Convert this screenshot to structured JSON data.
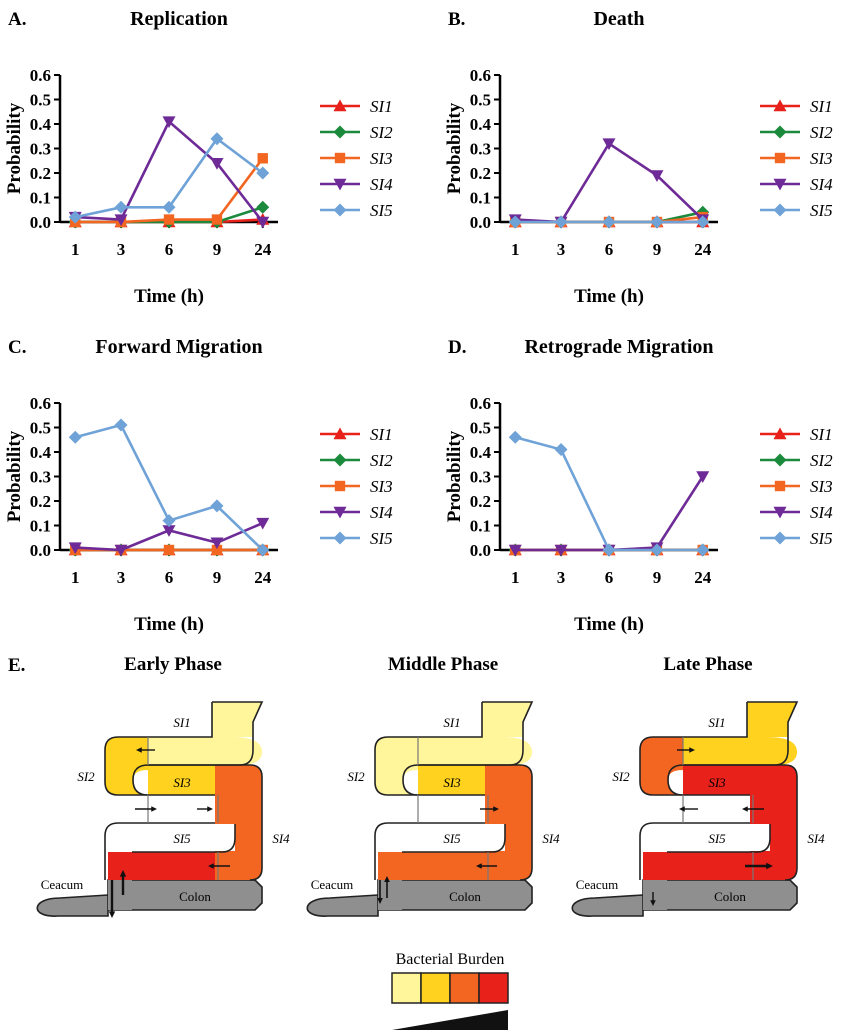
{
  "chart_data": [
    {
      "type": "line",
      "letter": "A.",
      "title": "Replication",
      "xlabel": "Time (h)",
      "ylabel": "Probability",
      "categories": [
        "1",
        "3",
        "6",
        "9",
        "24"
      ],
      "yticks": [
        "0.0",
        "0.1",
        "0.2",
        "0.3",
        "0.4",
        "0.5",
        "0.6"
      ],
      "ylim": [
        0,
        0.6
      ],
      "series": [
        {
          "name": "SI1",
          "values": [
            0.0,
            0.0,
            0.0,
            0.0,
            0.01
          ]
        },
        {
          "name": "SI2",
          "values": [
            0.0,
            0.0,
            0.0,
            0.0,
            0.06
          ]
        },
        {
          "name": "SI3",
          "values": [
            0.0,
            0.0,
            0.01,
            0.01,
            0.26
          ]
        },
        {
          "name": "SI4",
          "values": [
            0.02,
            0.01,
            0.41,
            0.24,
            0.0
          ]
        },
        {
          "name": "SI5",
          "values": [
            0.02,
            0.06,
            0.06,
            0.34,
            0.2
          ]
        }
      ]
    },
    {
      "type": "line",
      "letter": "B.",
      "title": "Death",
      "xlabel": "Time (h)",
      "ylabel": "Probability",
      "categories": [
        "1",
        "3",
        "6",
        "9",
        "24"
      ],
      "yticks": [
        "0.0",
        "0.1",
        "0.2",
        "0.3",
        "0.4",
        "0.5",
        "0.6"
      ],
      "ylim": [
        0,
        0.6
      ],
      "series": [
        {
          "name": "SI1",
          "values": [
            0.0,
            0.0,
            0.0,
            0.0,
            0.0
          ]
        },
        {
          "name": "SI2",
          "values": [
            0.0,
            0.0,
            0.0,
            0.0,
            0.04
          ]
        },
        {
          "name": "SI3",
          "values": [
            0.0,
            0.0,
            0.0,
            0.0,
            0.02
          ]
        },
        {
          "name": "SI4",
          "values": [
            0.01,
            0.0,
            0.32,
            0.19,
            0.01
          ]
        },
        {
          "name": "SI5",
          "values": [
            0.0,
            0.0,
            0.0,
            0.0,
            0.0
          ]
        }
      ]
    },
    {
      "type": "line",
      "letter": "C.",
      "title": "Forward Migration",
      "xlabel": "Time (h)",
      "ylabel": "Probability",
      "categories": [
        "1",
        "3",
        "6",
        "9",
        "24"
      ],
      "yticks": [
        "0.0",
        "0.1",
        "0.2",
        "0.3",
        "0.4",
        "0.5",
        "0.6"
      ],
      "ylim": [
        0,
        0.6
      ],
      "series": [
        {
          "name": "SI1",
          "values": [
            0.0,
            0.0,
            0.0,
            0.0,
            0.0
          ]
        },
        {
          "name": "SI2",
          "values": [
            0.0,
            0.0,
            0.0,
            0.0,
            0.0
          ]
        },
        {
          "name": "SI3",
          "values": [
            0.0,
            0.0,
            0.0,
            0.0,
            0.0
          ]
        },
        {
          "name": "SI4",
          "values": [
            0.01,
            0.0,
            0.08,
            0.03,
            0.11
          ]
        },
        {
          "name": "SI5",
          "values": [
            0.46,
            0.51,
            0.12,
            0.18,
            0.0
          ]
        }
      ]
    },
    {
      "type": "line",
      "letter": "D.",
      "title": "Retrograde Migration",
      "xlabel": "Time (h)",
      "ylabel": "Probability",
      "categories": [
        "1",
        "3",
        "6",
        "9",
        "24"
      ],
      "yticks": [
        "0.0",
        "0.1",
        "0.2",
        "0.3",
        "0.4",
        "0.5",
        "0.6"
      ],
      "ylim": [
        0,
        0.6
      ],
      "series": [
        {
          "name": "SI1",
          "values": [
            0.0,
            0.0,
            0.0,
            0.0,
            0.0
          ]
        },
        {
          "name": "SI2",
          "values": [
            0.0,
            0.0,
            0.0,
            0.0,
            0.0
          ]
        },
        {
          "name": "SI3",
          "values": [
            0.0,
            0.0,
            0.0,
            0.0,
            0.0
          ]
        },
        {
          "name": "SI4",
          "values": [
            0.0,
            0.0,
            0.0,
            0.01,
            0.3
          ]
        },
        {
          "name": "SI5",
          "values": [
            0.46,
            0.41,
            0.0,
            0.0,
            0.0
          ]
        }
      ]
    }
  ],
  "series_style": {
    "SI1": {
      "color": "#e8211b",
      "marker": "triangle-up"
    },
    "SI2": {
      "color": "#1b8a3c",
      "marker": "diamond"
    },
    "SI3": {
      "color": "#f26622",
      "marker": "square"
    },
    "SI4": {
      "color": "#6e2a96",
      "marker": "triangle-down"
    },
    "SI5": {
      "color": "#6fa3d8",
      "marker": "diamond"
    }
  },
  "panel_e": {
    "letter": "E.",
    "burden_colors": [
      "#fff59a",
      "#ffd21f",
      "#f26622",
      "#e8211b"
    ],
    "colon_color": "#8f8f8f",
    "region_labels": {
      "si1": "SI1",
      "si2": "SI2",
      "si3": "SI3",
      "si4": "SI4",
      "si5": "SI5",
      "ceacum": "Ceacum",
      "colon": "Colon"
    },
    "phases": [
      {
        "title": "Early Phase",
        "levels": {
          "si1": 0,
          "si2": 1,
          "si3": 1,
          "si4": 2,
          "si5": 3
        }
      },
      {
        "title": "Middle Phase",
        "levels": {
          "si1": 0,
          "si2": 0,
          "si3": 1,
          "si4": 2,
          "si5": 2
        }
      },
      {
        "title": "Late Phase",
        "levels": {
          "si1": 1,
          "si2": 2,
          "si3": 3,
          "si4": 3,
          "si5": 3
        }
      }
    ],
    "legend_title": "Bacterial Burden"
  }
}
